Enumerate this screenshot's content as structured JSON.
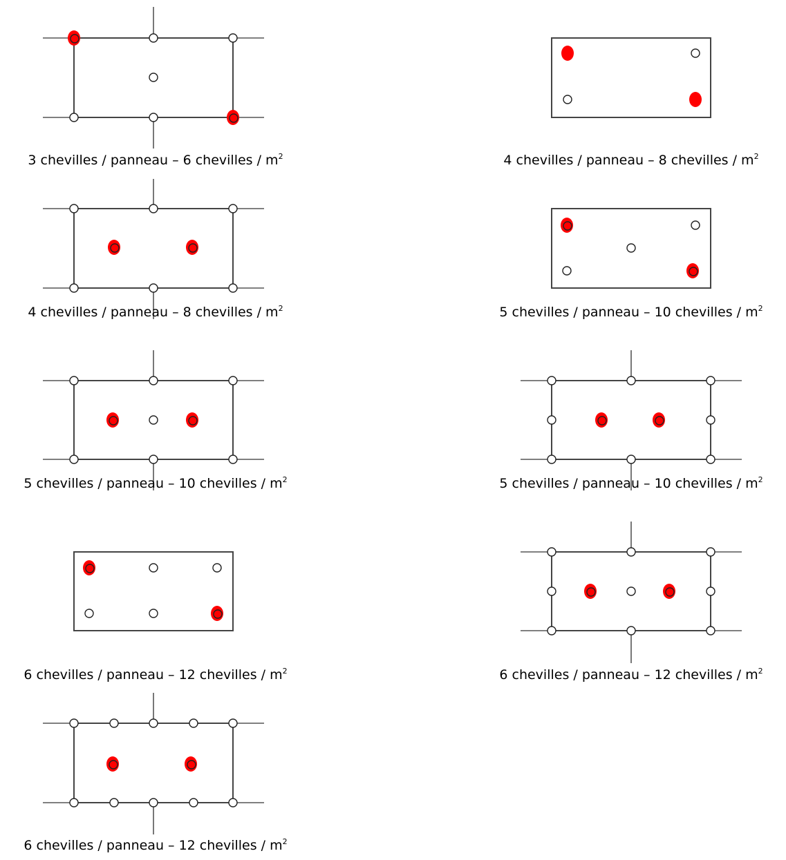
{
  "colors": {
    "background": "#ffffff",
    "frame": "#444444",
    "dowel_highlight": "#ff0000",
    "dowel_outline": "#222222"
  },
  "diagrams": [
    {
      "id": "d1",
      "caption": "3 chevilles / panneau – 6 chevilles / m",
      "unit_exponent": "2"
    },
    {
      "id": "d2",
      "caption": "4 chevilles / panneau – 8 chevilles / m",
      "unit_exponent": "2"
    },
    {
      "id": "d3",
      "caption": "4 chevilles / panneau – 8 chevilles / m",
      "unit_exponent": "2"
    },
    {
      "id": "d4",
      "caption": "5 chevilles / panneau – 10 chevilles / m",
      "unit_exponent": "2"
    },
    {
      "id": "d5",
      "caption": "5 chevilles / panneau – 10 chevilles / m",
      "unit_exponent": "2"
    },
    {
      "id": "d6",
      "caption": "5 chevilles / panneau – 10 chevilles / m",
      "unit_exponent": "2"
    },
    {
      "id": "d7",
      "caption": "6 chevilles / panneau – 12 chevilles / m",
      "unit_exponent": "2"
    },
    {
      "id": "d8",
      "caption": "6 chevilles / panneau – 12 chevilles / m",
      "unit_exponent": "2"
    },
    {
      "id": "d9",
      "caption": "6 chevilles / panneau – 12 chevilles / m",
      "unit_exponent": "2"
    }
  ]
}
